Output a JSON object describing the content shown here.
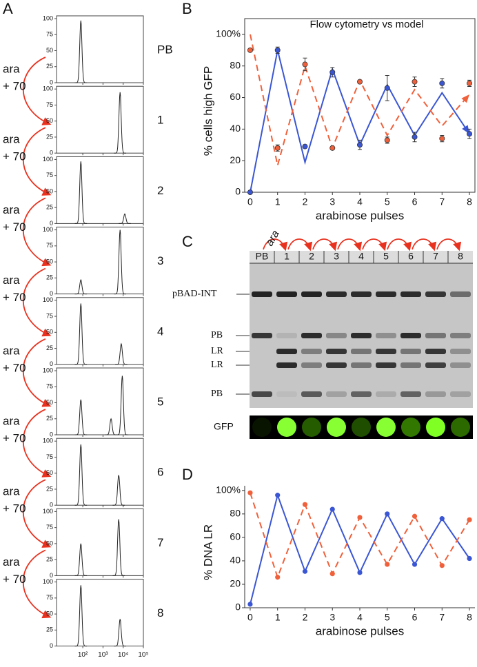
{
  "panel_a": {
    "letter": "A",
    "ylim": [
      0,
      100
    ],
    "yticks": [
      0,
      25,
      50,
      75,
      100
    ],
    "xlim": [
      5,
      100000
    ],
    "log_x": true,
    "xticks": [
      {
        "value": 100,
        "label": "10²"
      },
      {
        "value": 1000,
        "label": "10³"
      },
      {
        "value": 10000,
        "label": "10⁴"
      },
      {
        "value": 100000,
        "label": "10⁵"
      }
    ],
    "step_label": [
      "ara",
      "+ 70"
    ],
    "arrow_color": "#e8321f",
    "histograms": [
      {
        "label": "PB",
        "peaks": [
          {
            "x": 80,
            "y": 97
          }
        ]
      },
      {
        "label": "1",
        "peaks": [
          {
            "x": 7000,
            "y": 95
          }
        ]
      },
      {
        "label": "2",
        "peaks": [
          {
            "x": 80,
            "y": 97
          },
          {
            "x": 12000,
            "y": 15
          }
        ]
      },
      {
        "label": "3",
        "peaks": [
          {
            "x": 80,
            "y": 22
          },
          {
            "x": 7000,
            "y": 100
          }
        ]
      },
      {
        "label": "4",
        "peaks": [
          {
            "x": 80,
            "y": 95
          },
          {
            "x": 8000,
            "y": 32
          }
        ]
      },
      {
        "label": "5",
        "peaks": [
          {
            "x": 80,
            "y": 55
          },
          {
            "x": 2500,
            "y": 25
          },
          {
            "x": 9000,
            "y": 92
          }
        ]
      },
      {
        "label": "6",
        "peaks": [
          {
            "x": 80,
            "y": 95
          },
          {
            "x": 6000,
            "y": 47
          }
        ]
      },
      {
        "label": "7",
        "peaks": [
          {
            "x": 80,
            "y": 50
          },
          {
            "x": 6000,
            "y": 88
          }
        ]
      },
      {
        "label": "8",
        "peaks": [
          {
            "x": 80,
            "y": 95
          },
          {
            "x": 7000,
            "y": 42
          }
        ]
      }
    ]
  },
  "panel_c": {
    "letter": "C",
    "treatment_label": "ara",
    "arrow_color": "#e8321f",
    "lanes": [
      "PB",
      "1",
      "2",
      "3",
      "4",
      "5",
      "6",
      "7",
      "8"
    ],
    "band_labels": [
      "pBAD-INT",
      "PB",
      "LR",
      "LR",
      "PB"
    ],
    "bands": [
      [
        0.9,
        0.8,
        0,
        0,
        0.7
      ],
      [
        0.9,
        0.1,
        0.85,
        0.85,
        0.05
      ],
      [
        0.9,
        0.85,
        0.4,
        0.4,
        0.6
      ],
      [
        0.85,
        0.35,
        0.8,
        0.8,
        0.2
      ],
      [
        0.85,
        0.85,
        0.45,
        0.45,
        0.55
      ],
      [
        0.85,
        0.3,
        0.8,
        0.8,
        0.15
      ],
      [
        0.85,
        0.85,
        0.45,
        0.45,
        0.55
      ],
      [
        0.8,
        0.45,
        0.8,
        0.75,
        0.25
      ],
      [
        0.5,
        0.4,
        0.3,
        0.3,
        0.2
      ]
    ],
    "reporter_label": "GFP",
    "reporter": [
      0,
      1,
      0.25,
      1,
      0.2,
      1,
      0.35,
      0.95,
      0.3
    ]
  },
  "chart_data": [
    {
      "type": "line",
      "letter": "B",
      "title": "Flow cytometry vs model",
      "x_label": "arabinose pulses",
      "y_label": "% cells high GFP",
      "x": [
        0,
        1,
        2,
        3,
        4,
        5,
        6,
        7,
        8
      ],
      "xlim": [
        -0.2,
        8.2
      ],
      "xticks": [
        0,
        1,
        2,
        3,
        4,
        5,
        6,
        7,
        8
      ],
      "ylim": [
        0,
        110
      ],
      "yticks": [
        0,
        20,
        40,
        60,
        80,
        {
          "value": 100,
          "label": "100%"
        }
      ],
      "frame": true,
      "series": [
        {
          "color": "#3a56d4",
          "style": "solid",
          "arrow": true,
          "values": [
            0,
            90,
            19,
            78,
            30,
            68,
            36,
            63,
            37
          ]
        },
        {
          "color": "#f0603a",
          "style": "dashed",
          "arrow": true,
          "values": [
            100,
            17,
            80,
            28,
            71,
            36,
            65,
            42,
            62
          ]
        },
        {
          "color": "#3a56d4",
          "style": "points",
          "values": [
            0,
            90,
            29,
            76,
            30,
            66,
            35,
            69,
            37
          ],
          "errors": [
            0,
            2,
            1,
            3,
            3,
            8,
            3,
            3,
            3
          ]
        },
        {
          "color": "#f0603a",
          "style": "points",
          "values": [
            90,
            28,
            81,
            28,
            70,
            33,
            70,
            34,
            69
          ],
          "errors": [
            1,
            2,
            4,
            1,
            1,
            2,
            3,
            2,
            2
          ]
        }
      ]
    },
    {
      "type": "line",
      "letter": "D",
      "x_label": "arabinose pulses",
      "y_label": "% DNA LR",
      "x": [
        0,
        1,
        2,
        3,
        4,
        5,
        6,
        7,
        8
      ],
      "xlim": [
        -0.2,
        8.2
      ],
      "xticks": [
        0,
        1,
        2,
        3,
        4,
        5,
        6,
        7,
        8
      ],
      "ylim": [
        0,
        104
      ],
      "yticks": [
        0,
        20,
        40,
        60,
        80,
        {
          "value": 100,
          "label": "100%"
        }
      ],
      "frame": false,
      "series": [
        {
          "color": "#3a56d4",
          "style": "solid",
          "markers": true,
          "values": [
            3,
            96,
            31,
            84,
            30,
            80,
            37,
            76,
            42
          ]
        },
        {
          "color": "#f0603a",
          "style": "dashed",
          "markers": true,
          "values": [
            98,
            26,
            88,
            29,
            77,
            37,
            78,
            36,
            75
          ]
        }
      ]
    }
  ]
}
